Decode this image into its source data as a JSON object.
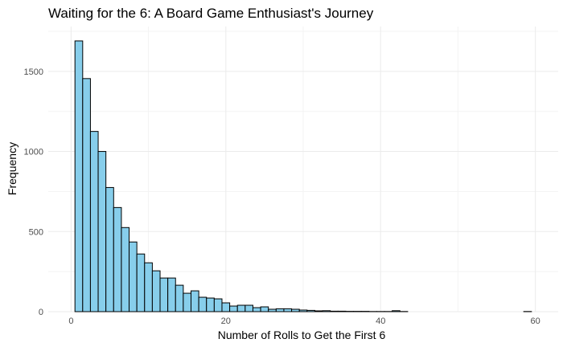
{
  "chart_data": {
    "type": "bar",
    "title": "Waiting for the 6: A Board Game Enthusiast's Journey",
    "xlabel": "Number of Rolls to Get the First 6",
    "ylabel": "Frequency",
    "xlim": [
      -2.95,
      62.95
    ],
    "ylim": [
      0,
      1780
    ],
    "x_ticks": [
      0,
      20,
      40,
      60
    ],
    "y_ticks": [
      0,
      500,
      1000,
      1500
    ],
    "grid": true,
    "bar_color": "#87CEEB",
    "bar_outline": "#000000",
    "bin_width": 1,
    "x": [
      1,
      2,
      3,
      4,
      5,
      6,
      7,
      8,
      9,
      10,
      11,
      12,
      13,
      14,
      15,
      16,
      17,
      18,
      19,
      20,
      21,
      22,
      23,
      24,
      25,
      26,
      27,
      28,
      29,
      30,
      31,
      32,
      33,
      34,
      35,
      36,
      37,
      38,
      39,
      40,
      41,
      42,
      43,
      44,
      45,
      46,
      47,
      48,
      49,
      50,
      51,
      52,
      53,
      54,
      55,
      56,
      57,
      58,
      59
    ],
    "values": [
      1690,
      1455,
      1125,
      1000,
      775,
      650,
      525,
      435,
      360,
      305,
      255,
      210,
      210,
      165,
      115,
      130,
      90,
      85,
      80,
      55,
      35,
      40,
      40,
      25,
      30,
      15,
      18,
      18,
      15,
      10,
      8,
      5,
      6,
      3,
      3,
      2,
      2,
      2,
      1,
      1,
      1,
      6,
      1,
      0,
      0,
      0,
      0,
      0,
      0,
      0,
      0,
      0,
      0,
      0,
      0,
      0,
      0,
      0,
      1
    ]
  }
}
